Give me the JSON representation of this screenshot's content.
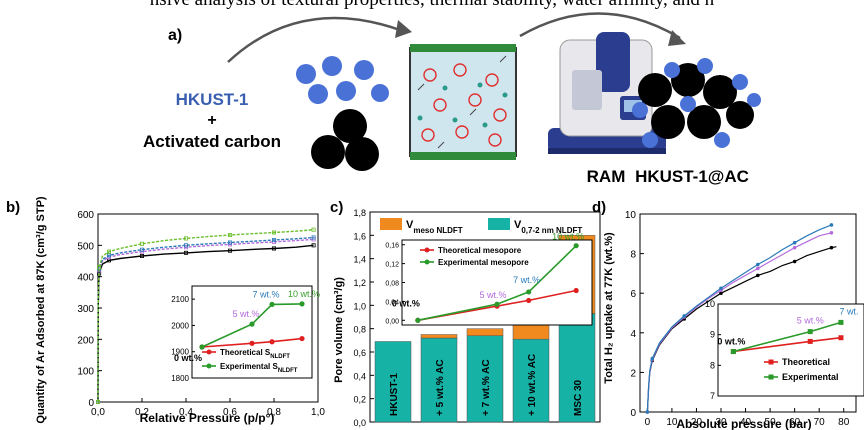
{
  "header_text": "nsive analysis of textural properties, thermal stability, water affinity, and h",
  "panel_a": {
    "label": "a)",
    "reactant1": "HKUST-1",
    "plus": "+",
    "reactant2": "Activated carbon",
    "machine_label": "RAM",
    "product": "HKUST-1@AC",
    "colors": {
      "hkust": "#3a5fb0",
      "mof_dot": "#4a72d6",
      "carbon": "#000000",
      "machine": "#2a3d8f"
    }
  },
  "chart_data": [
    {
      "panel": "b)",
      "type": "line",
      "xlabel": "Relative Pressure (p/p°)",
      "ylabel": "Quantity of Ar Adsorbed at 87K (cm³/g STP)",
      "xlim": [
        0.0,
        1.0
      ],
      "ylim": [
        0,
        600
      ],
      "xticks": [
        "0,0",
        "0,2",
        "0,4",
        "0,6",
        "0,8",
        "1,0"
      ],
      "yticks": [
        "0",
        "100",
        "200",
        "300",
        "400",
        "500",
        "600"
      ],
      "series": [
        {
          "color": "#000000",
          "x": [
            0.0,
            0.001,
            0.005,
            0.02,
            0.05,
            0.1,
            0.2,
            0.3,
            0.4,
            0.5,
            0.6,
            0.7,
            0.8,
            0.9,
            0.98
          ],
          "y": [
            0,
            300,
            410,
            440,
            452,
            458,
            466,
            472,
            476,
            480,
            483,
            487,
            490,
            494,
            500
          ]
        },
        {
          "color": "#b36bdc",
          "x": [
            0.0,
            0.001,
            0.005,
            0.02,
            0.05,
            0.1,
            0.2,
            0.3,
            0.4,
            0.5,
            0.6,
            0.7,
            0.8,
            0.9,
            0.98
          ],
          "y": [
            0,
            310,
            420,
            450,
            462,
            470,
            480,
            488,
            494,
            499,
            503,
            507,
            511,
            515,
            519
          ]
        },
        {
          "color": "#2a7ab8",
          "x": [
            0.0,
            0.001,
            0.005,
            0.02,
            0.05,
            0.1,
            0.2,
            0.3,
            0.4,
            0.5,
            0.6,
            0.7,
            0.8,
            0.9,
            0.98
          ],
          "y": [
            0,
            315,
            425,
            455,
            468,
            476,
            486,
            494,
            500,
            505,
            509,
            513,
            517,
            521,
            525
          ]
        },
        {
          "color": "#6bbf2a",
          "x": [
            0.0,
            0.001,
            0.005,
            0.02,
            0.05,
            0.1,
            0.2,
            0.3,
            0.4,
            0.5,
            0.6,
            0.7,
            0.8,
            0.9,
            0.98
          ],
          "y": [
            0,
            320,
            430,
            465,
            480,
            490,
            505,
            515,
            522,
            528,
            533,
            537,
            541,
            545,
            550
          ]
        }
      ],
      "inset": {
        "type": "line",
        "ylim": [
          1800,
          2150
        ],
        "yticks": [
          "1800",
          "1900",
          "2000",
          "2100"
        ],
        "x": [
          0,
          5,
          7,
          10
        ],
        "point_labels": [
          "0 wt.%",
          "5 wt.%",
          "7 wt.%",
          "10 wt.%"
        ],
        "point_label_colors": [
          "#000000",
          "#b36bdc",
          "#2a7ab8",
          "#3aa02a"
        ],
        "series": [
          {
            "name": "Theoretical S",
            "name_sub": "NLDFT",
            "color": "#e02020",
            "values": [
              1918,
              1932,
              1938,
              1950
            ]
          },
          {
            "name": "Experimental S",
            "name_sub": "NLDFT",
            "color": "#2a9a2a",
            "values": [
              1918,
              2005,
              2080,
              2082
            ]
          }
        ]
      }
    },
    {
      "panel": "c)",
      "type": "bar",
      "ylabel": "Pore volume (cm³/g)",
      "ylim": [
        0.0,
        1.8
      ],
      "yticks": [
        "0,0",
        "0,2",
        "0,4",
        "0,6",
        "0,8",
        "1,0",
        "1,2",
        "1,4",
        "1,6",
        "1,8"
      ],
      "categories": [
        "HKUST-1",
        "+ 5 wt.% AC",
        "+ 7 wt.% AC",
        "+ 10 wt.% AC",
        "MSC 30"
      ],
      "series": [
        {
          "name": "V",
          "name_sub": "0,7-2 nm NLDFT",
          "color": "#17b2a6",
          "values": [
            0.69,
            0.72,
            0.74,
            0.71,
            0.93
          ]
        },
        {
          "name": "V",
          "name_sub": "meso NLDFT",
          "color": "#f08a1e",
          "values": [
            0.0,
            0.03,
            0.06,
            0.15,
            0.67
          ]
        }
      ],
      "inset": {
        "type": "line",
        "ylim": [
          -0.01,
          0.17
        ],
        "yticks": [
          "0,00",
          "0,04",
          "0,08",
          "0,12",
          "0,16"
        ],
        "x": [
          0,
          5,
          7,
          10
        ],
        "point_labels": [
          "0 wt.%",
          "5 wt.%",
          "7 wt.%",
          "10 wt.%"
        ],
        "point_label_colors": [
          "#000000",
          "#b36bdc",
          "#2a7ab8",
          "#3aa02a"
        ],
        "series": [
          {
            "name": "Theoretical mesopore",
            "color": "#e02020",
            "values": [
              0.0,
              0.03,
              0.042,
              0.063
            ]
          },
          {
            "name": "Experimental mesopore",
            "color": "#2a9a2a",
            "values": [
              0.0,
              0.034,
              0.06,
              0.158
            ]
          }
        ]
      }
    },
    {
      "panel": "d)",
      "type": "line",
      "xlabel": "Absolute pressure (bar)",
      "ylabel": "Total H₂ uptake at 77K (wt.%)",
      "xlim": [
        -3,
        85
      ],
      "ylim": [
        0,
        10
      ],
      "xticks": [
        "0",
        "10",
        "20",
        "30",
        "40",
        "50",
        "60",
        "70",
        "80"
      ],
      "yticks": [
        "0",
        "2",
        "4",
        "6",
        "8",
        "10"
      ],
      "series": [
        {
          "color": "#000000",
          "x": [
            0,
            0.5,
            1,
            2,
            5,
            10,
            15,
            20,
            25,
            30,
            35,
            40,
            45,
            50,
            55,
            60,
            65,
            70,
            75,
            77
          ],
          "y": [
            0,
            1.2,
            2.0,
            2.6,
            3.4,
            4.2,
            4.7,
            5.2,
            5.6,
            6.0,
            6.3,
            6.6,
            6.9,
            7.1,
            7.4,
            7.6,
            7.9,
            8.1,
            8.3,
            8.35
          ]
        },
        {
          "color": "#b36bdc",
          "x": [
            0,
            0.5,
            1,
            2,
            5,
            10,
            15,
            20,
            25,
            30,
            35,
            40,
            45,
            50,
            55,
            60,
            65,
            70,
            75
          ],
          "y": [
            0,
            1.25,
            2.05,
            2.65,
            3.45,
            4.25,
            4.8,
            5.3,
            5.75,
            6.15,
            6.55,
            6.9,
            7.25,
            7.6,
            7.95,
            8.3,
            8.6,
            8.9,
            9.05
          ]
        },
        {
          "color": "#2a7ab8",
          "x": [
            0,
            0.5,
            1,
            2,
            5,
            10,
            15,
            20,
            25,
            30,
            35,
            40,
            45,
            50,
            55,
            60,
            65,
            70,
            75
          ],
          "y": [
            0,
            1.3,
            2.1,
            2.7,
            3.5,
            4.3,
            4.85,
            5.35,
            5.8,
            6.25,
            6.65,
            7.05,
            7.45,
            7.8,
            8.2,
            8.55,
            8.9,
            9.2,
            9.45
          ]
        }
      ],
      "inset": {
        "type": "line",
        "ylim": [
          7,
          10
        ],
        "yticks": [
          "7",
          "8",
          "9",
          "10"
        ],
        "x": [
          0,
          5,
          7
        ],
        "point_labels": [
          "0 wt.%",
          "5 wt.%",
          "7 wt."
        ],
        "point_label_colors": [
          "#000000",
          "#b36bdc",
          "#2a7ab8"
        ],
        "series": [
          {
            "name": "Theoretical",
            "color": "#e02020",
            "values": [
              8.45,
              8.78,
              8.9
            ]
          },
          {
            "name": "Experimental",
            "color": "#2a9a2a",
            "values": [
              8.45,
              9.1,
              9.4
            ]
          }
        ]
      }
    }
  ]
}
